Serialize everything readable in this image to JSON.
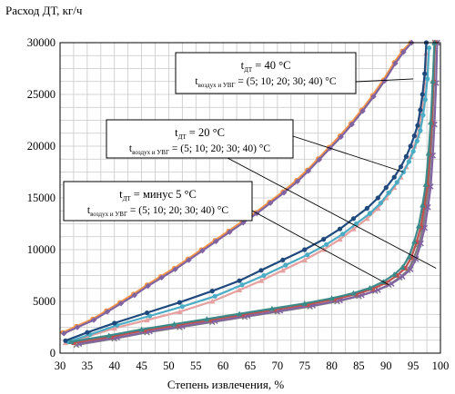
{
  "chart_data": {
    "type": "line",
    "xlabel": "Степень извлечения, %",
    "ylabel": "Расход ДТ, кг/ч",
    "xlim": [
      30,
      100
    ],
    "ylim": [
      0,
      30000
    ],
    "xticks": [
      30,
      35,
      40,
      45,
      50,
      55,
      60,
      65,
      70,
      75,
      80,
      85,
      90,
      95,
      100
    ],
    "yticks": [
      0,
      5000,
      10000,
      15000,
      20000,
      25000,
      30000
    ],
    "grid": true,
    "colors": {
      "purple": "#8064a2",
      "orange": "#f79646",
      "blue": "#1f497d",
      "cyan": "#4bacc6",
      "pink": "#e6a0a0",
      "teal": "#3a8a8a",
      "gray": "#7f7f7f"
    },
    "annotations": [
      {
        "id": "t40",
        "line1_prefix": "t",
        "line1_sub": "ДТ",
        "line1_rest": " = 40 °C",
        "line2_prefix": "t",
        "line2_sub": "воздух и УВГ",
        "line2_rest": " = (5; 10; 20; 30; 40) °C"
      },
      {
        "id": "t20",
        "line1_prefix": "t",
        "line1_sub": "ДТ",
        "line1_rest": " = 20 °C",
        "line2_prefix": "t",
        "line2_sub": "воздух и УВГ",
        "line2_rest": " = (5; 10; 20; 30; 40) °C"
      },
      {
        "id": "tm5",
        "line1_prefix": "t",
        "line1_sub": "ДТ",
        "line1_rest": " = минус 5 °C",
        "line2_prefix": "t",
        "line2_sub": "воздух и УВГ",
        "line2_rest": " = (5; 10; 20; 30; 40) °C"
      }
    ],
    "groups": [
      {
        "id": "t40",
        "series": [
          {
            "color": "#f79646",
            "marker": "circle",
            "x": [
              30.5,
              33,
              36,
              38.5,
              41,
              43.5,
              46,
              48.5,
              51,
              53.5,
              56,
              58.5,
              61,
              63.5,
              66,
              68.5,
              71,
              73.5,
              75.5,
              77.5,
              79.5,
              81.5,
              83.5,
              85.5,
              87.5,
              89.5,
              91.5,
              93,
              94.5
            ],
            "y": [
              2000,
              2600,
              3300,
              4100,
              4900,
              5700,
              6600,
              7400,
              8200,
              9100,
              10000,
              10900,
              11800,
              12700,
              13600,
              14600,
              15600,
              16700,
              17700,
              18800,
              19900,
              21000,
              22200,
              23500,
              24900,
              26400,
              28100,
              29200,
              30000
            ]
          },
          {
            "color": "#8064a2",
            "marker": "diamond",
            "x": [
              30.7,
              33.2,
              36.2,
              38.7,
              41.2,
              43.7,
              46.2,
              48.7,
              51.2,
              53.7,
              56.2,
              58.7,
              61.2,
              63.7,
              66.2,
              68.7,
              71.2,
              73.7,
              75.7,
              77.7,
              79.7,
              81.7,
              83.7,
              85.7,
              87.7,
              89.7,
              91.7,
              93.2,
              94.7
            ],
            "y": [
              1900,
              2500,
              3200,
              4000,
              4800,
              5600,
              6500,
              7300,
              8100,
              9000,
              9900,
              10800,
              11700,
              12600,
              13500,
              14500,
              15500,
              16600,
              17600,
              18700,
              19800,
              20900,
              22100,
              23400,
              24800,
              26300,
              28000,
              29100,
              30000
            ]
          }
        ]
      },
      {
        "id": "t20",
        "series": [
          {
            "color": "#e6a0a0",
            "marker": "triangle",
            "x": [
              31,
              35,
              40,
              46,
              52,
              58,
              63,
              67,
              71,
              75,
              78.5,
              81.5,
              84,
              86.5,
              88.5,
              90,
              91.5,
              92.7,
              93.7,
              94.5,
              95.2,
              95.8,
              96.3,
              96.7,
              97.1,
              97.4
            ],
            "y": [
              1000,
              1600,
              2400,
              3200,
              4000,
              5000,
              6100,
              7000,
              8000,
              9000,
              10000,
              11000,
              12000,
              13000,
              14000,
              15000,
              16000,
              17000,
              18000,
              19000,
              20000,
              21000,
              22500,
              24000,
              26000,
              29000
            ]
          },
          {
            "color": "#4bacc6",
            "marker": "circle",
            "x": [
              31.5,
              35.5,
              40.5,
              46.5,
              52.5,
              58.5,
              63.5,
              67.5,
              71.5,
              75.5,
              79,
              82,
              84.5,
              87,
              89,
              90.5,
              92,
              93.2,
              94.2,
              95,
              95.7,
              96.3,
              96.8,
              97.2,
              97.6,
              97.9
            ],
            "y": [
              1100,
              1800,
              2700,
              3600,
              4500,
              5500,
              6600,
              7500,
              8500,
              9500,
              10500,
              11500,
              12500,
              13500,
              14500,
              15500,
              16500,
              17500,
              18500,
              19500,
              20500,
              21500,
              23000,
              24500,
              26500,
              29500
            ]
          },
          {
            "color": "#1f497d",
            "marker": "circle",
            "x": [
              31,
              35,
              40,
              46,
              52,
              58,
              63,
              67,
              71,
              75,
              78.5,
              81.5,
              84,
              86.5,
              88.5,
              90,
              91.5,
              92.7,
              93.7,
              94.5,
              95.2,
              95.8,
              96.3,
              96.7,
              97.1,
              97.4
            ],
            "y": [
              1200,
              2000,
              2900,
              3900,
              4900,
              6000,
              7000,
              8000,
              9000,
              10000,
              11000,
              12000,
              13000,
              14000,
              15000,
              16000,
              17000,
              18000,
              19000,
              20000,
              21000,
              22000,
              23500,
              25000,
              27000,
              30000
            ]
          }
        ]
      },
      {
        "id": "tm5",
        "series": [
          {
            "color": "#7f7f7f",
            "marker": "x",
            "x": [
              33,
              40,
              46,
              52,
              58,
              64,
              70,
              76,
              81,
              85,
              88,
              90.5,
              92.5,
              94,
              95,
              96,
              96.7,
              97.3,
              97.8,
              98.2,
              98.5,
              98.8,
              99
            ],
            "y": [
              800,
              1400,
              2000,
              2500,
              3000,
              3500,
              4000,
              4500,
              5000,
              5500,
              6000,
              6600,
              7300,
              8000,
              9000,
              10500,
              12000,
              14000,
              16000,
              19000,
              22000,
              26000,
              30000
            ]
          },
          {
            "color": "#8064a2",
            "marker": "x",
            "x": [
              33.5,
              40.5,
              46.5,
              52.5,
              58.5,
              64.5,
              70.5,
              76.5,
              81.5,
              85.5,
              88.5,
              91,
              93,
              94.5,
              95.5,
              96.4,
              97.1,
              97.7,
              98.2,
              98.6,
              98.9,
              99.2,
              99.4
            ],
            "y": [
              900,
              1500,
              2100,
              2600,
              3100,
              3600,
              4100,
              4600,
              5100,
              5600,
              6100,
              6700,
              7400,
              8100,
              9100,
              10600,
              12100,
              14100,
              16100,
              19100,
              22100,
              26100,
              30000
            ]
          },
          {
            "color": "#c0504d",
            "marker": "square",
            "x": [
              32.5,
              39.5,
              45.5,
              51.5,
              57.5,
              63.5,
              69.5,
              75.5,
              80.5,
              84.5,
              87.5,
              90,
              92,
              93.5,
              94.6,
              95.6,
              96.4,
              97,
              97.6,
              98,
              98.4,
              98.7,
              99
            ],
            "y": [
              1000,
              1600,
              2200,
              2700,
              3200,
              3700,
              4200,
              4700,
              5200,
              5700,
              6200,
              6800,
              7500,
              8200,
              9200,
              10700,
              12200,
              14200,
              16200,
              19200,
              22200,
              26200,
              30000
            ]
          },
          {
            "color": "#3a8a8a",
            "marker": "triangle",
            "x": [
              32,
              39,
              45,
              51,
              57,
              63,
              69,
              75,
              80,
              84,
              87,
              89.5,
              91.5,
              93,
              94.2,
              95.2,
              96,
              96.7,
              97.3,
              97.8,
              98.2,
              98.6,
              98.9
            ],
            "y": [
              1100,
              1700,
              2300,
              2800,
              3300,
              3800,
              4300,
              4800,
              5300,
              5800,
              6300,
              6900,
              7600,
              8300,
              9300,
              10800,
              12300,
              14300,
              16300,
              19300,
              22300,
              26300,
              30000
            ]
          }
        ]
      }
    ]
  }
}
